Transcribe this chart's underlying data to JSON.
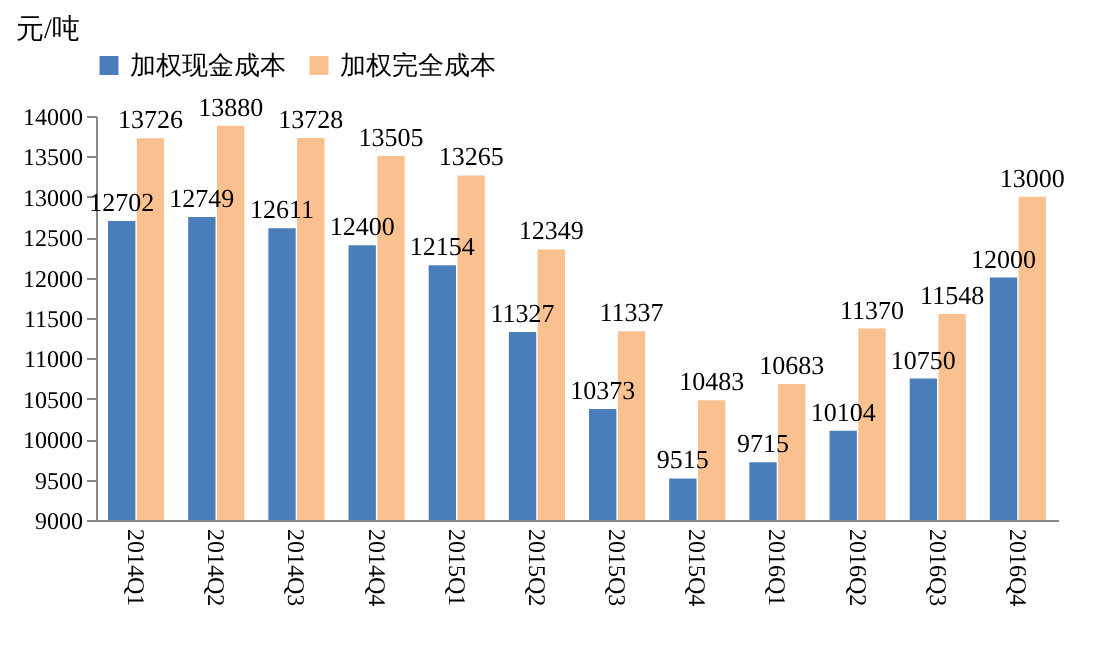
{
  "chart_data": {
    "type": "bar",
    "ylabel": "元/吨",
    "categories": [
      "2014Q1",
      "2014Q2",
      "2014Q3",
      "2014Q4",
      "2015Q1",
      "2015Q2",
      "2015Q3",
      "2015Q4",
      "2016Q1",
      "2016Q2",
      "2016Q3",
      "2016Q4"
    ],
    "series": [
      {
        "name": "加权现金成本",
        "color": "#4a7ebb",
        "values": [
          12702,
          12749,
          12611,
          12400,
          12154,
          11327,
          10373,
          9515,
          9715,
          10104,
          10750,
          12000
        ]
      },
      {
        "name": "加权完全成本",
        "color": "#fac090",
        "values": [
          13726,
          13880,
          13728,
          13505,
          13265,
          12349,
          11337,
          10483,
          10683,
          11370,
          11548,
          13000
        ]
      }
    ],
    "ylim": [
      9000,
      14000
    ],
    "yticks": [
      9000,
      9500,
      10000,
      10500,
      11000,
      11500,
      12000,
      12500,
      13000,
      13500,
      14000
    ],
    "data_labels": true,
    "legend": "top",
    "grid": false
  }
}
